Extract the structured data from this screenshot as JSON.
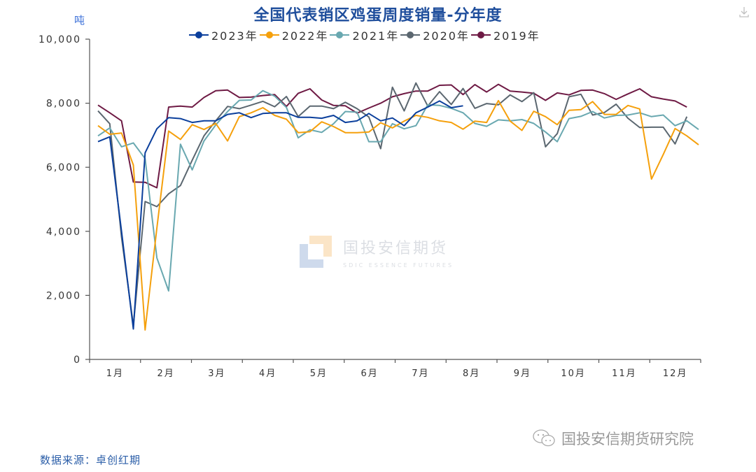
{
  "header": {
    "title": "全国代表销区鸡蛋周度销量-分年度",
    "unit": "吨"
  },
  "legend": [
    {
      "label": "2023年",
      "color": "#0b3f9c"
    },
    {
      "label": "2022年",
      "color": "#f5a00c"
    },
    {
      "label": "2021年",
      "color": "#69a8b0"
    },
    {
      "label": "2020年",
      "color": "#5b6770"
    },
    {
      "label": "2019年",
      "color": "#6e1a44"
    }
  ],
  "footer": {
    "source": "数据来源：卓创红期",
    "brand": "国投安信期货研究院"
  },
  "watermark": {
    "cn": "国投安信期货",
    "en": "SDIC ESSENCE FUTURES"
  },
  "icons": {
    "download": "download-icon",
    "wechat": "wechat-icon"
  },
  "chart_data": {
    "type": "line",
    "title": "全国代表销区鸡蛋周度销量-分年度",
    "xlabel": "",
    "ylabel": "吨",
    "ylim": [
      0,
      10000
    ],
    "yticks": [
      0,
      2000,
      4000,
      6000,
      8000,
      10000
    ],
    "ytick_labels": [
      "0",
      "2,000",
      "4,000",
      "6,000",
      "8,000",
      "10,000"
    ],
    "categories": [
      "1月",
      "2月",
      "3月",
      "4月",
      "5月",
      "6月",
      "7月",
      "8月",
      "9月",
      "10月",
      "11月",
      "12月"
    ],
    "grid": false,
    "legend_position": "top",
    "x_unit": "week_of_year",
    "series": [
      {
        "name": "2023年",
        "color": "#0b3f9c",
        "values": [
          6800,
          6950,
          4000,
          950,
          6450,
          7200,
          7550,
          7520,
          7400,
          7450,
          7450,
          7650,
          7700,
          7550,
          7680,
          7700,
          7700,
          7560,
          7560,
          7530,
          7620,
          7400,
          7450,
          7680,
          7450,
          7540,
          7300,
          7700,
          7880,
          8070,
          7860,
          7920
        ]
      },
      {
        "name": "2022年",
        "color": "#f5a00c",
        "values": [
          7300,
          7030,
          7070,
          6070,
          920,
          4100,
          7130,
          6870,
          7330,
          7180,
          7370,
          6820,
          7580,
          7700,
          7860,
          7620,
          7500,
          7080,
          7110,
          7420,
          7270,
          7080,
          7080,
          7100,
          7390,
          7230,
          7440,
          7620,
          7560,
          7450,
          7400,
          7190,
          7440,
          7400,
          8080,
          7440,
          7150,
          7750,
          7580,
          7330,
          7780,
          7800,
          8050,
          7650,
          7650,
          7930,
          7820,
          5630,
          6400,
          7210,
          6980,
          6700
        ]
      },
      {
        "name": "2021年",
        "color": "#69a8b0",
        "values": [
          6980,
          7230,
          6640,
          6760,
          6270,
          3170,
          2140,
          6720,
          5920,
          6820,
          7320,
          7740,
          8090,
          8100,
          8390,
          8220,
          7870,
          6920,
          7170,
          7090,
          7360,
          7740,
          7720,
          6800,
          6800,
          7360,
          7200,
          7300,
          7950,
          7930,
          7840,
          7700,
          7370,
          7280,
          7480,
          7450,
          7490,
          7370,
          7100,
          6800,
          7520,
          7590,
          7740,
          7540,
          7620,
          7630,
          7700,
          7580,
          7630,
          7300,
          7450,
          7180
        ]
      },
      {
        "name": "2020年",
        "color": "#5b6770",
        "values": [
          7760,
          7360,
          3820,
          1060,
          4930,
          4770,
          5170,
          5430,
          6220,
          6980,
          7450,
          7900,
          7830,
          7940,
          8060,
          7890,
          8210,
          7580,
          7910,
          7910,
          7830,
          8030,
          7830,
          7570,
          6580,
          8500,
          7760,
          8630,
          7910,
          8360,
          7960,
          8460,
          7840,
          7990,
          7950,
          8260,
          8050,
          8330,
          6640,
          7050,
          8200,
          8280,
          7630,
          7710,
          7970,
          7530,
          7240,
          7250,
          7250,
          6730,
          7580
        ]
      },
      {
        "name": "2019年",
        "color": "#6e1a44",
        "values": [
          7940,
          7700,
          7450,
          5540,
          5530,
          5360,
          7880,
          7910,
          7880,
          8180,
          8390,
          8410,
          8180,
          8190,
          8240,
          8270,
          7900,
          8310,
          8450,
          8100,
          7930,
          7920,
          7690,
          7850,
          8000,
          8200,
          8300,
          8380,
          8380,
          8560,
          8570,
          8270,
          8580,
          8350,
          8590,
          8380,
          8350,
          8310,
          8090,
          8320,
          8260,
          8400,
          8410,
          8300,
          8120,
          8290,
          8450,
          8200,
          8130,
          8070,
          7880
        ]
      }
    ]
  }
}
